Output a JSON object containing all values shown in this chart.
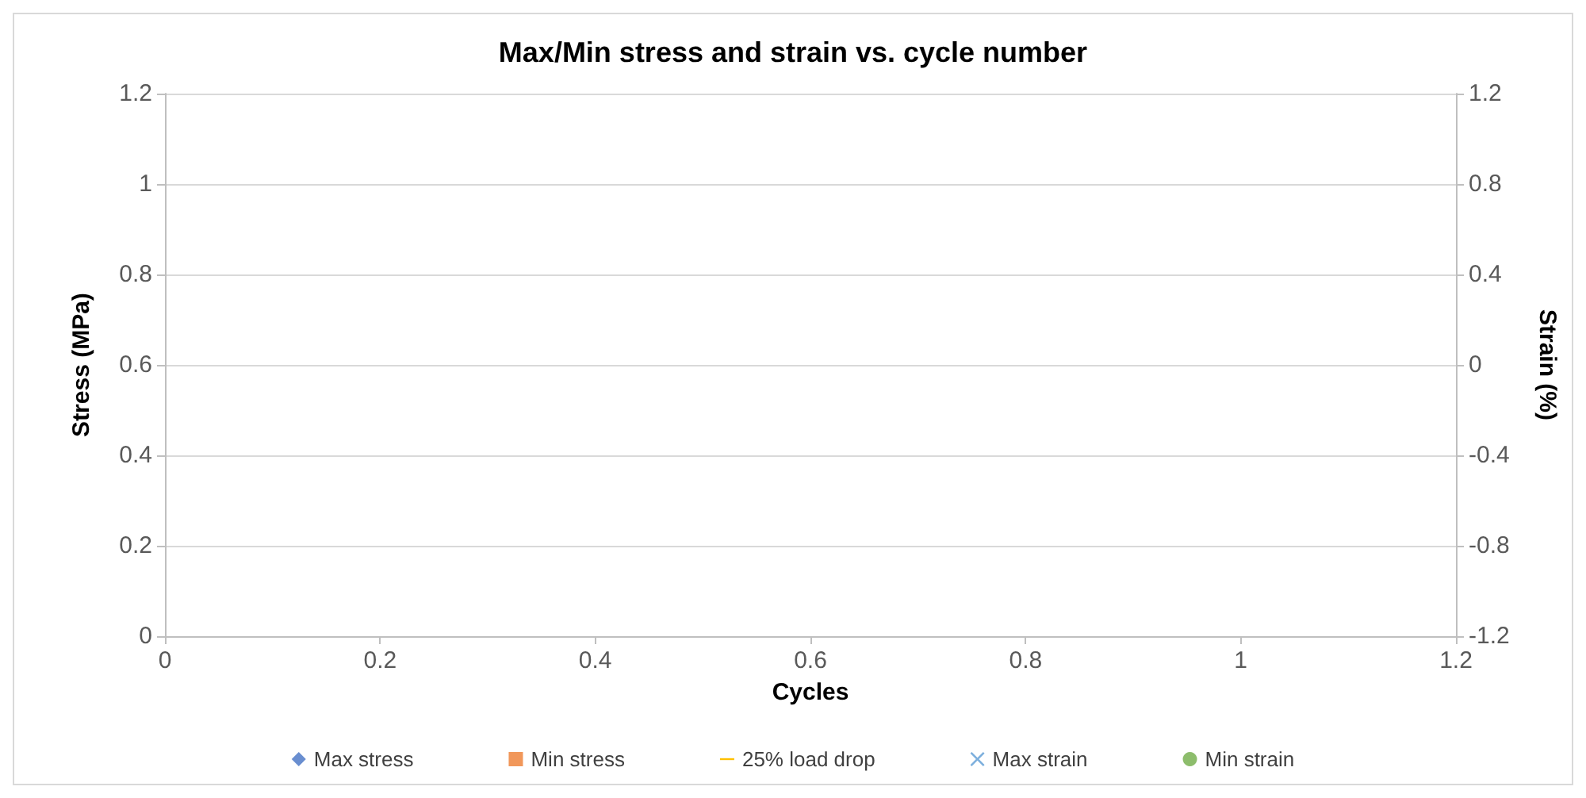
{
  "chart_data": {
    "type": "scatter",
    "title": "Max/Min stress and strain vs. cycle number",
    "xlabel": "Cycles",
    "ylabel": "Stress (MPa)",
    "y2label": "Strain (%)",
    "categories": [
      "0",
      "0.2",
      "0.4",
      "0.6",
      "0.8",
      "1",
      "1.2"
    ],
    "ylim": [
      0,
      1.2
    ],
    "yticks": [
      0,
      0.2,
      0.4,
      0.6,
      0.8,
      1,
      1.2
    ],
    "y2lim": [
      -1.2,
      1.2
    ],
    "y2ticks": [
      -1.2,
      -0.8,
      -0.4,
      0,
      0.4,
      0.8,
      1.2
    ],
    "grid": "y",
    "legend": "bottom",
    "series": [
      {
        "name": "Max stress",
        "marker": "diamond",
        "color": "#4472c4",
        "values": [
          null,
          null,
          null,
          null,
          null,
          null,
          null
        ]
      },
      {
        "name": "Min stress",
        "marker": "square",
        "color": "#ed7d31",
        "values": [
          null,
          null,
          null,
          null,
          null,
          null,
          null
        ]
      },
      {
        "name": "25% load drop",
        "type": "line",
        "marker": "none",
        "color": "#ffc000",
        "values": [
          null,
          null,
          null,
          null,
          null,
          null,
          null
        ]
      },
      {
        "name": "Max strain",
        "marker": "cross",
        "color": "#5b9bd5",
        "values": [
          null,
          null,
          null,
          null,
          null,
          null,
          null
        ]
      },
      {
        "name": "Min strain",
        "marker": "circle",
        "color": "#70ad47",
        "values": [
          null,
          null,
          null,
          null,
          null,
          null,
          null
        ]
      }
    ]
  }
}
